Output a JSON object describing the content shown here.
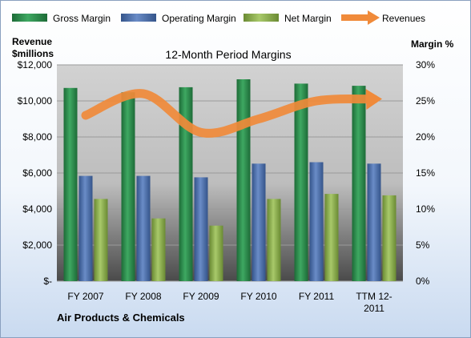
{
  "chart_data": {
    "type": "bar",
    "title": "12-Month Period Margins",
    "company": "Air Products & Chemicals",
    "left_axis_title": [
      "Revenue",
      "$millions"
    ],
    "right_axis_title": "Margin %",
    "categories": [
      [
        "FY 2007"
      ],
      [
        "FY 2008"
      ],
      [
        "FY 2009"
      ],
      [
        "FY 2010"
      ],
      [
        "FY 2011"
      ],
      [
        "TTM 12-",
        "2011"
      ]
    ],
    "left_ticks": [
      "$-",
      "$2,000",
      "$4,000",
      "$6,000",
      "$8,000",
      "$10,000",
      "$12,000"
    ],
    "right_ticks": [
      "0%",
      "5%",
      "10%",
      "15%",
      "20%",
      "25%",
      "30%"
    ],
    "ylim_left": [
      0,
      12000
    ],
    "ylim_right": [
      0,
      30
    ],
    "series": [
      {
        "name": "Gross Margin",
        "type": "bar",
        "axis": "right",
        "color": "#2e8b4e",
        "values": [
          26.8,
          26.2,
          26.9,
          28.0,
          27.4,
          27.1
        ]
      },
      {
        "name": "Operating Margin",
        "type": "bar",
        "axis": "right",
        "color": "#4f73b0",
        "values": [
          14.6,
          14.6,
          14.4,
          16.3,
          16.5,
          16.3
        ]
      },
      {
        "name": "Net Margin",
        "type": "bar",
        "axis": "right",
        "color": "#8fb04f",
        "values": [
          11.4,
          8.7,
          7.7,
          11.4,
          12.1,
          11.9
        ]
      },
      {
        "name": "Revenues",
        "type": "line",
        "axis": "left",
        "color": "#f08a3a",
        "values": [
          9200,
          10400,
          8250,
          9000,
          10000,
          10100
        ]
      }
    ],
    "grid": true,
    "legend_position": "top"
  }
}
